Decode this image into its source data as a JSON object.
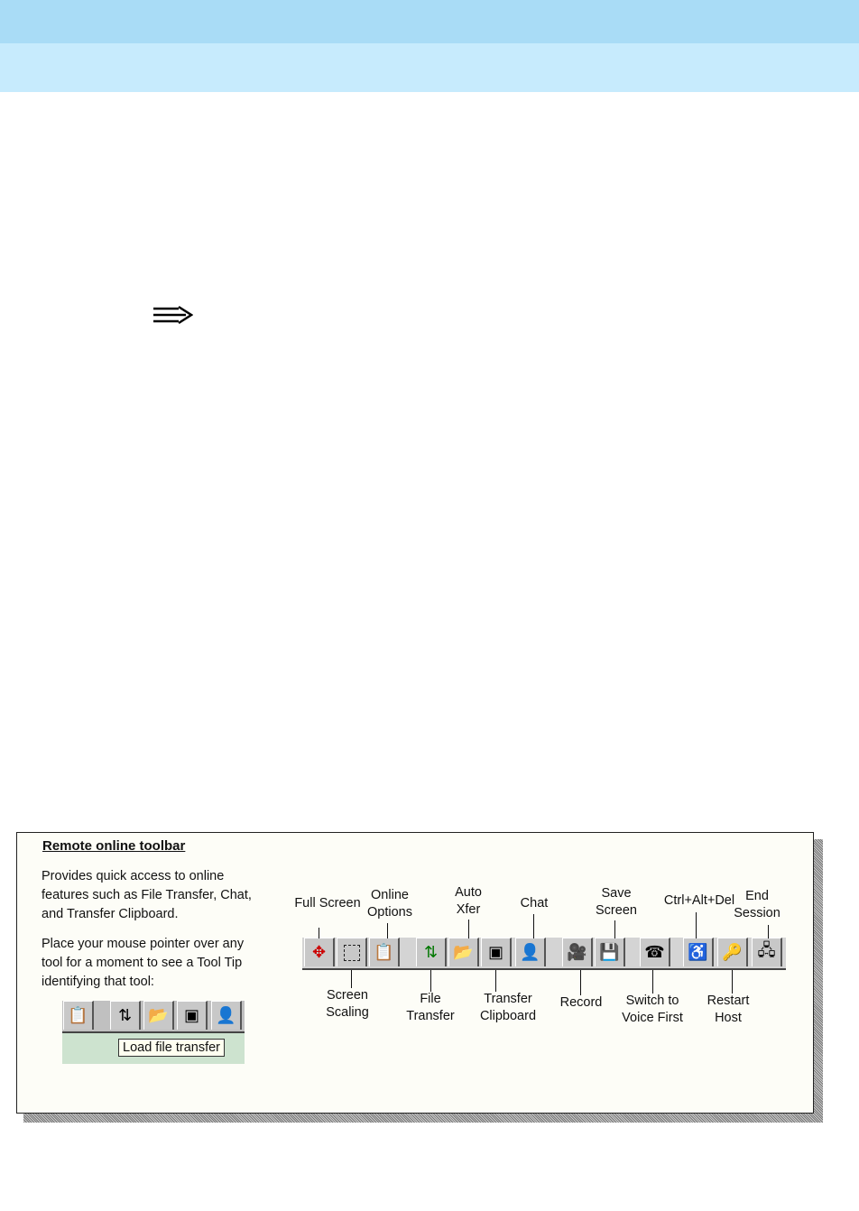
{
  "colors": {
    "header_top": "#a9dcf6",
    "header_bottom": "#c7ebfd",
    "panel_bg": "#fdfdf7",
    "tooltip_bg": "#cde3cf"
  },
  "note_icon": "note-arrow-icon",
  "figure": {
    "title": "Remote online toolbar",
    "description": "Provides quick access to online features such as File Transfer, Chat, and Transfer Clipboard.",
    "instruction": "Place your mouse pointer over any tool for a moment to see a Tool Tip identifying that tool:",
    "tooltip": "Load file transfer",
    "tools": [
      {
        "label": "Full Screen",
        "icon": "full-screen-icon"
      },
      {
        "label": "Screen Scaling",
        "icon": "screen-scaling-icon"
      },
      {
        "label": "Online Options",
        "icon": "options-icon"
      },
      {
        "label": "File Transfer",
        "icon": "file-transfer-icon"
      },
      {
        "label": "Auto Xfer",
        "icon": "auto-xfer-icon"
      },
      {
        "label": "Transfer Clipboard",
        "icon": "clipboard-icon"
      },
      {
        "label": "Chat",
        "icon": "chat-icon"
      },
      {
        "label": "Record",
        "icon": "camera-icon"
      },
      {
        "label": "Save Screen",
        "icon": "floppy-icon"
      },
      {
        "label": "Switch to Voice First",
        "icon": "phone-icon"
      },
      {
        "label": "Ctrl+Alt+Del",
        "icon": "ctrl-alt-del-icon"
      },
      {
        "label": "Restart Host",
        "icon": "key-icon"
      },
      {
        "label": "End Session",
        "icon": "end-session-icon"
      }
    ]
  }
}
